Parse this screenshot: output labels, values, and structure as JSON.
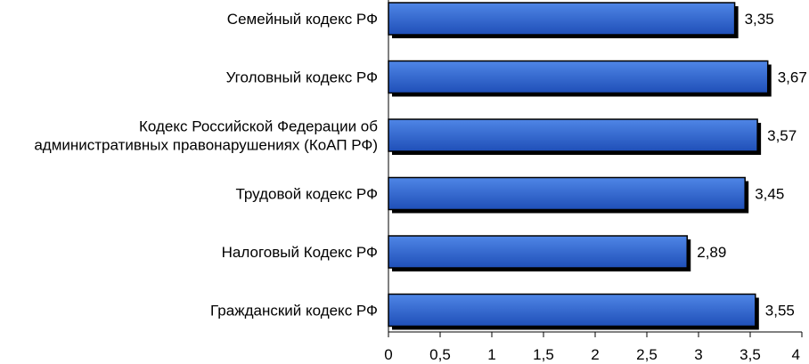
{
  "chart_data": {
    "type": "bar",
    "orientation": "horizontal",
    "categories": [
      [
        "Семейный кодекс РФ"
      ],
      [
        "Уголовный кодекс РФ"
      ],
      [
        "Кодекс Российской Федерации об",
        "административных правонарушениях (КоАП РФ)"
      ],
      [
        "Трудовой кодекс РФ"
      ],
      [
        "Налоговый Кодекс РФ"
      ],
      [
        "Гражданский кодекс РФ"
      ]
    ],
    "values": [
      3.35,
      3.67,
      3.57,
      3.45,
      2.89,
      3.55
    ],
    "value_labels": [
      "3,35",
      "3,67",
      "3,57",
      "3,45",
      "2,89",
      "3,55"
    ],
    "xlim": [
      0,
      4
    ],
    "ticks": [
      0,
      0.5,
      1,
      1.5,
      2,
      2.5,
      3,
      3.5,
      4
    ],
    "tick_labels": [
      "0",
      "0,5",
      "1",
      "1,5",
      "2",
      "2,5",
      "3",
      "3,5",
      "4"
    ],
    "grid": false,
    "legend": "none",
    "colors": {
      "bar_top": "#4f86e6",
      "bar_bottom": "#1f4fb8",
      "bar_border": "#000000",
      "shadow": "#000000"
    }
  }
}
